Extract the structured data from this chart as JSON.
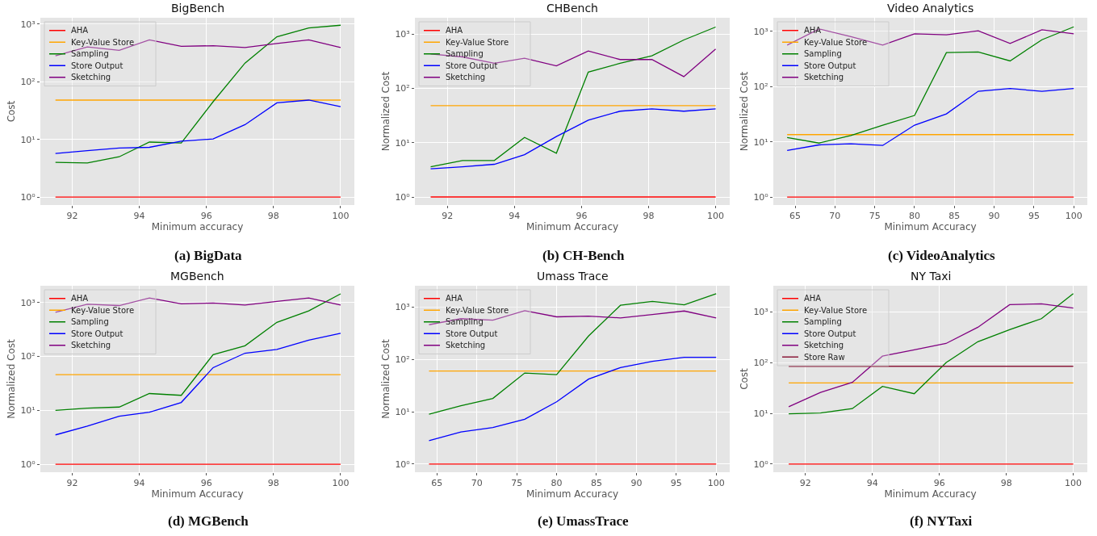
{
  "chart_data": [
    {
      "type": "line",
      "title": "BigBench",
      "xlabel": "Minimum accuracy",
      "ylabel": "Cost",
      "annotations": [
        "(a) BigData"
      ],
      "log": "y",
      "grid": true,
      "legend": "top left",
      "xlim": [
        91.05,
        100.41
      ],
      "xticks": [
        92,
        94,
        96,
        98,
        100
      ],
      "ylim": [
        0.73,
        1280
      ],
      "yticks": [
        {
          "value": 1,
          "label": "10⁰"
        },
        {
          "value": 10,
          "label": "10¹"
        },
        {
          "value": 100,
          "label": "10²"
        },
        {
          "value": 1000,
          "label": "10³"
        }
      ],
      "x": [
        91.5,
        92.45,
        93.4,
        94.3,
        95.25,
        96.2,
        97.15,
        98.1,
        99.05,
        100
      ],
      "series": [
        {
          "name": "AHA",
          "color": "#ff0000",
          "values": [
            1,
            1,
            1,
            1,
            1,
            1,
            1,
            1,
            1,
            1
          ]
        },
        {
          "name": "Key-Value Store",
          "color": "#ffa500",
          "values": [
            48,
            48,
            48,
            48,
            48,
            48,
            48,
            48,
            48,
            48
          ]
        },
        {
          "name": "Sampling",
          "color": "#008000",
          "values": [
            4.0,
            3.9,
            5.0,
            9.0,
            8.7,
            45,
            210,
            600,
            850,
            950
          ]
        },
        {
          "name": "Store Output",
          "color": "#0000ff",
          "values": [
            5.7,
            6.4,
            7.1,
            7.3,
            9.3,
            10.2,
            18,
            43,
            48,
            37
          ]
        },
        {
          "name": "Sketching",
          "color": "#800080",
          "values": [
            280,
            400,
            350,
            530,
            410,
            420,
            390,
            460,
            530,
            390
          ]
        }
      ]
    },
    {
      "type": "line",
      "title": "CHBench",
      "xlabel": "Minimum Accuracy",
      "ylabel": "Normalized Cost",
      "annotations": [
        "(b) CH-Bench"
      ],
      "log": "y",
      "grid": true,
      "legend": "top left",
      "xlim": [
        91.03,
        100.42
      ],
      "xticks": [
        92,
        94,
        96,
        98,
        100
      ],
      "ylim": [
        0.71,
        2000
      ],
      "yticks": [
        {
          "value": 1,
          "label": "10⁰"
        },
        {
          "value": 10,
          "label": "10¹"
        },
        {
          "value": 100,
          "label": "10²"
        },
        {
          "value": 1000,
          "label": "10³"
        }
      ],
      "x": [
        91.5,
        92.45,
        93.4,
        94.3,
        95.25,
        96.2,
        97.15,
        98.1,
        99.05,
        100
      ],
      "series": [
        {
          "name": "AHA",
          "color": "#ff0000",
          "values": [
            1,
            1,
            1,
            1,
            1,
            1,
            1,
            1,
            1,
            1
          ]
        },
        {
          "name": "Key-Value Store",
          "color": "#ffa500",
          "values": [
            48,
            48,
            48,
            48,
            48,
            48,
            48,
            48,
            48,
            48
          ]
        },
        {
          "name": "Sampling",
          "color": "#008000",
          "values": [
            3.6,
            4.7,
            4.7,
            12.5,
            6.4,
            200,
            290,
            400,
            780,
            1350
          ]
        },
        {
          "name": "Store Output",
          "color": "#0000ff",
          "values": [
            3.3,
            3.6,
            4.0,
            6.0,
            13,
            26,
            38,
            42,
            38,
            42
          ]
        },
        {
          "name": "Sketching",
          "color": "#800080",
          "values": [
            430,
            380,
            290,
            360,
            260,
            490,
            340,
            340,
            165,
            530
          ]
        }
      ]
    },
    {
      "type": "line",
      "title": "Video Analytics",
      "xlabel": "Minimum Accuracy",
      "ylabel": "Normalized Cost",
      "annotations": [
        "(c) VideoAnalytics"
      ],
      "log": "y",
      "grid": true,
      "legend": "top left",
      "xlim": [
        62.26,
        101.7
      ],
      "xticks": [
        65,
        70,
        75,
        80,
        85,
        90,
        95,
        100
      ],
      "ylim": [
        0.72,
        1750
      ],
      "yticks": [
        {
          "value": 1,
          "label": "10⁰"
        },
        {
          "value": 10,
          "label": "10¹"
        },
        {
          "value": 100,
          "label": "10²"
        },
        {
          "value": 1000,
          "label": "10³"
        }
      ],
      "x": [
        64,
        68,
        72,
        76,
        80,
        84,
        88,
        92,
        96,
        100
      ],
      "series": [
        {
          "name": "AHA",
          "color": "#ff0000",
          "values": [
            1,
            1,
            1,
            1,
            1,
            1,
            1,
            1,
            1,
            1
          ]
        },
        {
          "name": "Key-Value Store",
          "color": "#ffa500",
          "values": [
            13.5,
            13.5,
            13.5,
            13.5,
            13.5,
            13.5,
            13.5,
            13.5,
            13.5,
            13.5
          ]
        },
        {
          "name": "Sampling",
          "color": "#008000",
          "values": [
            12,
            9.5,
            13,
            20,
            30,
            410,
            420,
            290,
            700,
            1200
          ]
        },
        {
          "name": "Store Output",
          "color": "#0000ff",
          "values": [
            7,
            8.8,
            9.2,
            8.6,
            20,
            32,
            82,
            92,
            82,
            92
          ]
        },
        {
          "name": "Sketching",
          "color": "#800080",
          "values": [
            560,
            1100,
            800,
            560,
            900,
            860,
            1020,
            600,
            1060,
            900
          ]
        }
      ]
    },
    {
      "type": "line",
      "title": "MGBench",
      "xlabel": "Minimum Accuracy",
      "ylabel": "Normalized Cost",
      "annotations": [
        "(d) MGBench"
      ],
      "log": "y",
      "grid": true,
      "legend": "top left",
      "xlim": [
        91.05,
        100.41
      ],
      "xticks": [
        92,
        94,
        96,
        98,
        100
      ],
      "ylim": [
        0.71,
        2050
      ],
      "yticks": [
        {
          "value": 1,
          "label": "10⁰"
        },
        {
          "value": 10,
          "label": "10¹"
        },
        {
          "value": 100,
          "label": "10²"
        },
        {
          "value": 1000,
          "label": "10³"
        }
      ],
      "x": [
        91.5,
        92.45,
        93.4,
        94.3,
        95.25,
        96.2,
        97.15,
        98.1,
        99.05,
        100
      ],
      "series": [
        {
          "name": "AHA",
          "color": "#ff0000",
          "values": [
            1,
            1,
            1,
            1,
            1,
            1,
            1,
            1,
            1,
            1
          ]
        },
        {
          "name": "Key-Value Store",
          "color": "#ffa500",
          "values": [
            46,
            46,
            46,
            46,
            46,
            46,
            46,
            46,
            46,
            46
          ]
        },
        {
          "name": "Sampling",
          "color": "#008000",
          "values": [
            10,
            11,
            11.5,
            20.5,
            19,
            108,
            158,
            430,
            700,
            1450
          ]
        },
        {
          "name": "Store Output",
          "color": "#0000ff",
          "values": [
            3.5,
            5.1,
            7.8,
            9.2,
            14,
            62,
            115,
            135,
            200,
            270
          ]
        },
        {
          "name": "Sketching",
          "color": "#800080",
          "values": [
            660,
            930,
            880,
            1220,
            950,
            980,
            900,
            1050,
            1220,
            900
          ]
        }
      ]
    },
    {
      "type": "line",
      "title": "Umass Trace",
      "xlabel": "Minimum Accuracy",
      "ylabel": "Normalized Cost",
      "annotations": [
        "(e) UmassTrace"
      ],
      "log": "y",
      "grid": true,
      "legend": "top left",
      "xlim": [
        62.23,
        101.7
      ],
      "xticks": [
        65,
        70,
        75,
        80,
        85,
        90,
        95,
        100
      ],
      "ylim": [
        0.7,
        2550
      ],
      "yticks": [
        {
          "value": 1,
          "label": "10⁰"
        },
        {
          "value": 10,
          "label": "10¹"
        },
        {
          "value": 100,
          "label": "10²"
        },
        {
          "value": 1000,
          "label": "10³"
        }
      ],
      "x": [
        64,
        68,
        72,
        76,
        80,
        84,
        88,
        92,
        96,
        100
      ],
      "series": [
        {
          "name": "AHA",
          "color": "#ff0000",
          "values": [
            1,
            1,
            1,
            1,
            1,
            1,
            1,
            1,
            1,
            1
          ]
        },
        {
          "name": "Key-Value Store",
          "color": "#ffa500",
          "values": [
            60,
            60,
            60,
            60,
            60,
            60,
            60,
            60,
            60,
            60
          ]
        },
        {
          "name": "Sampling",
          "color": "#008000",
          "values": [
            9,
            13,
            18,
            55,
            51,
            280,
            1080,
            1280,
            1100,
            1800
          ]
        },
        {
          "name": "Store Output",
          "color": "#0000ff",
          "values": [
            2.8,
            4.1,
            5.0,
            7.2,
            15.5,
            42,
            70,
            92,
            110,
            110
          ]
        },
        {
          "name": "Sketching",
          "color": "#800080",
          "values": [
            460,
            600,
            560,
            850,
            650,
            670,
            620,
            720,
            840,
            620
          ]
        }
      ]
    },
    {
      "type": "line",
      "title": "NY Taxi",
      "xlabel": "Minimum Accuracy",
      "ylabel": "Cost",
      "annotations": [
        "(f) NYTaxi"
      ],
      "log": "y",
      "grid": true,
      "legend": "top left",
      "xlim": [
        91.04,
        100.42
      ],
      "xticks": [
        92,
        94,
        96,
        98,
        100
      ],
      "ylim": [
        0.69,
        3300
      ],
      "yticks": [
        {
          "value": 1,
          "label": "10⁰"
        },
        {
          "value": 10,
          "label": "10¹"
        },
        {
          "value": 100,
          "label": "10²"
        },
        {
          "value": 1000,
          "label": "10³"
        }
      ],
      "x": [
        91.5,
        92.45,
        93.4,
        94.3,
        95.25,
        96.2,
        97.15,
        98.1,
        99.05,
        100
      ],
      "series": [
        {
          "name": "AHA",
          "color": "#ff0000",
          "values": [
            1,
            1,
            1,
            1,
            1,
            1,
            1,
            1,
            1,
            1
          ]
        },
        {
          "name": "Key-Value Store",
          "color": "#ffa500",
          "values": [
            40,
            40,
            40,
            40,
            40,
            40,
            40,
            40,
            40,
            40
          ]
        },
        {
          "name": "Sampling",
          "color": "#008000",
          "values": [
            9.8,
            10.2,
            12.4,
            34,
            24.5,
            100,
            260,
            450,
            740,
            2300
          ]
        },
        {
          "name": "Store Output",
          "color": "#0000ff",
          "values": [
            null,
            null,
            null,
            null,
            null,
            null,
            null,
            null,
            null,
            null
          ]
        },
        {
          "name": "Sketching",
          "color": "#800080",
          "values": [
            13.5,
            26,
            41,
            135,
            180,
            240,
            500,
            1400,
            1450,
            1200
          ]
        },
        {
          "name": "Store Raw",
          "color": "#8b1a3a",
          "values": [
            85,
            85,
            85,
            85,
            85,
            85,
            85,
            85,
            85,
            85
          ]
        }
      ]
    }
  ]
}
